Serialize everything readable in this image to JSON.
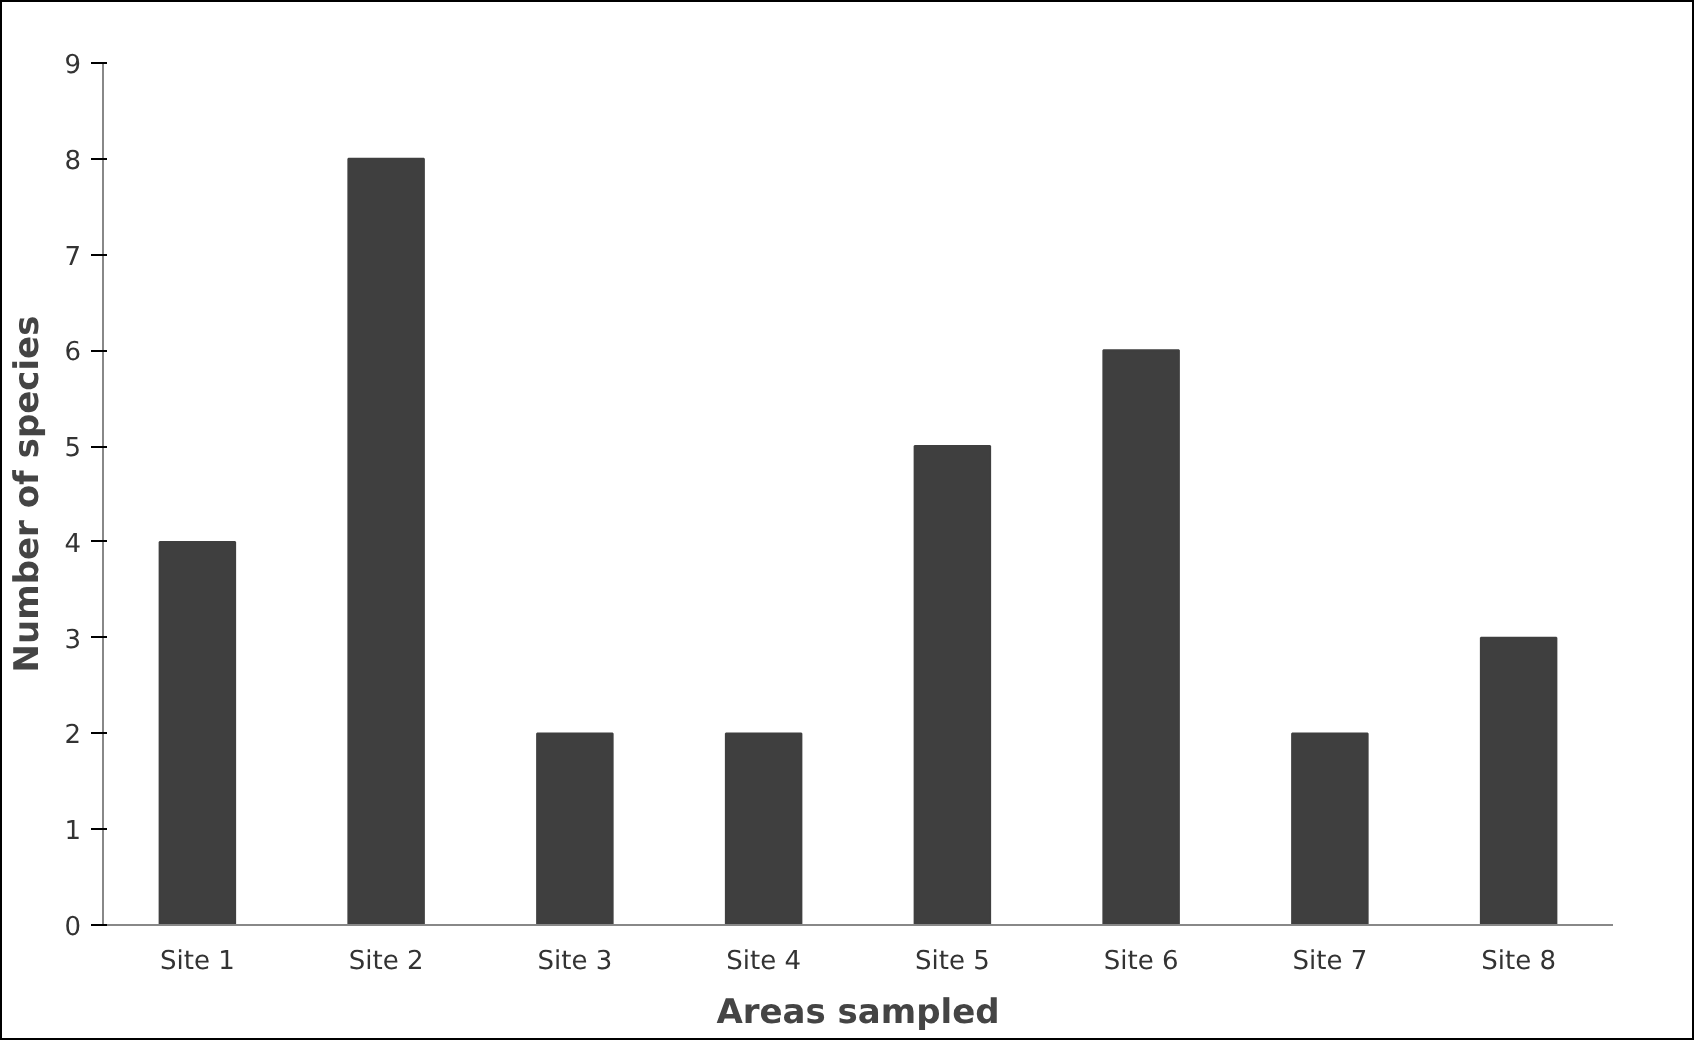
{
  "chart_data": {
    "type": "bar",
    "xlabel": "Areas sampled",
    "ylabel": "Number of species",
    "categories": [
      "Site 1",
      "Site 2",
      "Site 3",
      "Site 4",
      "Site 5",
      "Site 6",
      "Site 7",
      "Site 8"
    ],
    "values": [
      4,
      8,
      2,
      2,
      5,
      6,
      2,
      3
    ],
    "color": "#3f3f3f",
    "ylim": [
      0,
      9
    ],
    "yticks": [
      0,
      1,
      2,
      3,
      4,
      5,
      6,
      7,
      8,
      9
    ],
    "grid": false
  }
}
